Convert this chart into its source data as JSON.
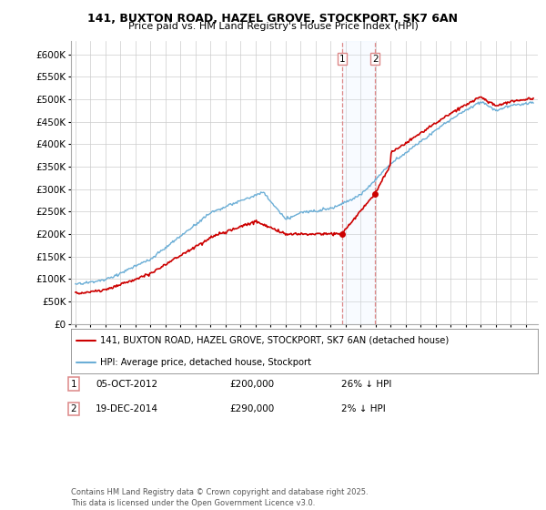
{
  "title1": "141, BUXTON ROAD, HAZEL GROVE, STOCKPORT, SK7 6AN",
  "title2": "Price paid vs. HM Land Registry's House Price Index (HPI)",
  "legend_label1": "141, BUXTON ROAD, HAZEL GROVE, STOCKPORT, SK7 6AN (detached house)",
  "legend_label2": "HPI: Average price, detached house, Stockport",
  "transaction1_date": "05-OCT-2012",
  "transaction1_price": "£200,000",
  "transaction1_hpi": "26% ↓ HPI",
  "transaction2_date": "19-DEC-2014",
  "transaction2_price": "£290,000",
  "transaction2_hpi": "2% ↓ HPI",
  "footer": "Contains HM Land Registry data © Crown copyright and database right 2025.\nThis data is licensed under the Open Government Licence v3.0.",
  "hpi_color": "#6baed6",
  "price_color": "#cc0000",
  "background_color": "#ffffff",
  "grid_color": "#cccccc",
  "shade_color": "#ddeeff",
  "vline_color": "#dd8888",
  "yticks": [
    0,
    50000,
    100000,
    150000,
    200000,
    250000,
    300000,
    350000,
    400000,
    450000,
    500000,
    550000,
    600000
  ]
}
